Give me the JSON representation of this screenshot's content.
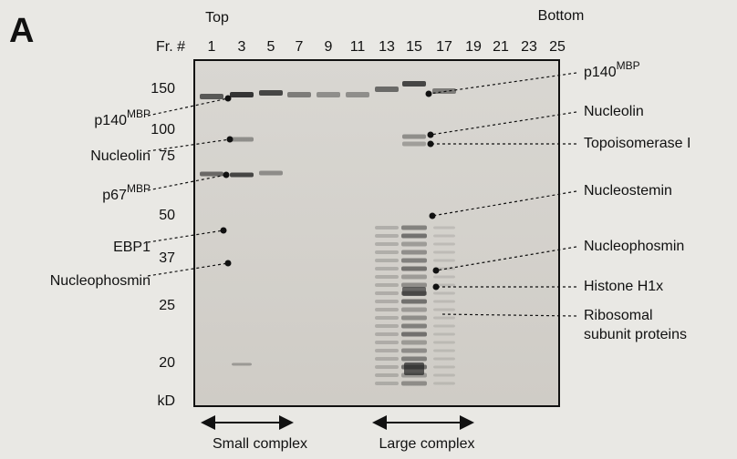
{
  "panel_label": "A",
  "top_label": "Top",
  "bottom_label": "Bottom",
  "fraction_header": "Fr. #",
  "fractions": [
    1,
    3,
    5,
    7,
    9,
    11,
    13,
    15,
    17,
    19,
    21,
    23,
    25
  ],
  "mw_markers": [
    150,
    100,
    75,
    50,
    37,
    25,
    20
  ],
  "mw_unit": "kD",
  "left_labels": [
    {
      "name": "p140",
      "sup": "MBP"
    },
    {
      "name": "Nucleolin"
    },
    {
      "name": "p67",
      "sup": "MBP"
    },
    {
      "name": "EBP1"
    },
    {
      "name": "Nucleophosmin"
    }
  ],
  "right_labels": [
    {
      "name": "p140",
      "sup": "MBP"
    },
    {
      "name": "Nucleolin"
    },
    {
      "name": "Topoisomerase I"
    },
    {
      "name": "Nucleostemin"
    },
    {
      "name": "Nucleophosmin"
    },
    {
      "name": "Histone H1x"
    },
    {
      "name": "Ribosomal",
      "line2": "subunit proteins"
    }
  ],
  "complexes": [
    "Small complex",
    "Large complex"
  ]
}
